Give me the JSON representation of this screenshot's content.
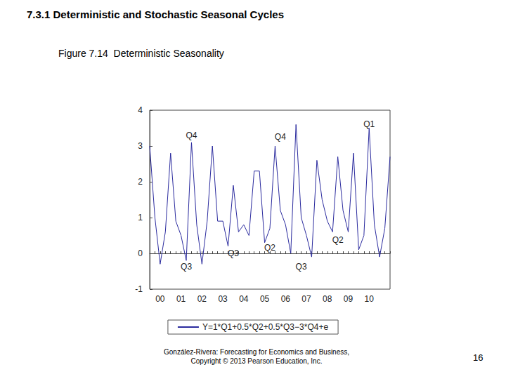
{
  "chart_data": {
    "type": "line",
    "title": "7.3.1 Deterministic and Stochastic Seasonal Cycles",
    "subtitle": "Figure 7.14  Deterministic Seasonality",
    "footer": "González-Rivera: Forecasting for Economics and Business,\nCopyright © 2013 Pearson Education, Inc.",
    "page_number": "16",
    "categories": [
      null,
      null,
      "00",
      null,
      null,
      null,
      "01",
      null,
      null,
      null,
      "02",
      null,
      null,
      null,
      "03",
      null,
      null,
      null,
      "04",
      null,
      null,
      null,
      "05",
      null,
      null,
      null,
      "06",
      null,
      null,
      null,
      "07",
      null,
      null,
      null,
      "08",
      null,
      null,
      null,
      "09",
      null,
      null,
      null,
      "10",
      null,
      null,
      null,
      null
    ],
    "series": [
      {
        "name": "Y=1*Q1+0.5*Q2+0.5*Q3−3*Q4+e",
        "color": "#2b2b9e",
        "values": [
          3.0,
          1.0,
          -0.3,
          0.6,
          2.8,
          0.9,
          0.5,
          -0.2,
          3.1,
          0.8,
          -0.3,
          0.9,
          3.0,
          0.9,
          0.9,
          0.2,
          1.9,
          0.6,
          0.8,
          0.5,
          2.3,
          2.3,
          0.3,
          0.7,
          3.0,
          1.2,
          0.8,
          0.0,
          3.6,
          1.0,
          0.5,
          -0.1,
          2.6,
          1.5,
          0.9,
          0.6,
          2.7,
          1.2,
          0.6,
          2.8,
          0.1,
          0.5,
          3.5,
          0.8,
          -0.1,
          0.7,
          2.7
        ]
      }
    ],
    "annotations": [
      {
        "text": "Q4",
        "x": 8,
        "y": 3.3
      },
      {
        "text": "Q4",
        "x": 25,
        "y": 3.25
      },
      {
        "text": "Q1",
        "x": 42,
        "y": 3.6
      },
      {
        "text": "Q3",
        "x": 7,
        "y": -0.38
      },
      {
        "text": "Q3",
        "x": 16,
        "y": 0.0
      },
      {
        "text": "Q2",
        "x": 23,
        "y": 0.15
      },
      {
        "text": "Q3",
        "x": 29,
        "y": -0.38
      },
      {
        "text": "Q2",
        "x": 36,
        "y": 0.38
      }
    ],
    "ylim": [
      -1,
      4
    ],
    "yticks": [
      -1,
      0,
      1,
      2,
      3,
      4
    ],
    "grid": false,
    "legend": "bottom"
  }
}
